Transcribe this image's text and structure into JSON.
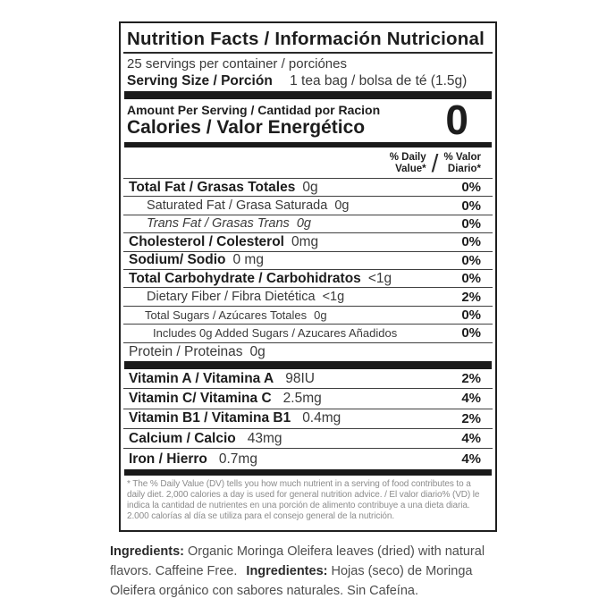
{
  "colors": {
    "ink_bold": "#1d1d1d",
    "ink_light": "#3a3a3a",
    "divider": "#1a1a1a",
    "footnote_gray": "#8c8c8c",
    "ingredients_gray": "#4e4e4e",
    "background": "#ffffff"
  },
  "label": {
    "title": "Nutrition Facts / Información Nutricional",
    "servings": "25 servings per container / porciónes",
    "serving_size_label": "Serving Size / Porción",
    "serving_size_value": "1 tea bag / bolsa de té (1.5g)",
    "amount_per_serving": "Amount Per Serving / Cantidad por Racion",
    "calories_label": "Calories / Valor Energético",
    "calories_value": "0",
    "dv_header": {
      "en_line1": "% Daily",
      "en_line2": "Value*",
      "slash": "/",
      "es_line1": "% Valor",
      "es_line2": "Diario*"
    },
    "rows": [
      {
        "name": "Total Fat / Grasas Totales",
        "amount": "0g",
        "dv": "0%"
      },
      {
        "name": "Saturated Fat / Grasa Saturada",
        "amount": "0g",
        "dv": "0%"
      },
      {
        "name": "Trans Fat / Grasas Trans",
        "amount": "0g",
        "dv": "0%"
      },
      {
        "name": "Cholesterol / Colesterol",
        "amount": "0mg",
        "dv": "0%"
      },
      {
        "name": "Sodium/ Sodio",
        "amount": "0 mg",
        "dv": "0%"
      },
      {
        "name": "Total Carbohydrate / Carbohidratos",
        "amount": "<1g",
        "dv": "0%"
      },
      {
        "name": "Dietary Fiber / Fibra Dietética",
        "amount": "<1g",
        "dv": "2%"
      },
      {
        "name": "Total Sugars / Azúcares Totales",
        "amount": "0g",
        "dv": "0%"
      },
      {
        "name": "Includes 0g Added Sugars / Azucares Añadidos",
        "amount": "",
        "dv": "0%"
      },
      {
        "name": "Protein / Proteinas",
        "amount": "0g",
        "dv": ""
      }
    ],
    "vitamins": [
      {
        "name": "Vitamin A / Vitamina A",
        "amount": "98IU",
        "dv": "2%"
      },
      {
        "name": "Vitamin C/ Vitamina C",
        "amount": "2.5mg",
        "dv": "4%"
      },
      {
        "name": "Vitamin B1 / Vitamina B1",
        "amount": "0.4mg",
        "dv": "2%"
      },
      {
        "name": "Calcium / Calcio",
        "amount": "43mg",
        "dv": "4%"
      },
      {
        "name": "Iron / Hierro",
        "amount": "0.7mg",
        "dv": "4%"
      }
    ],
    "footnote": "* The % Daily Value (DV) tells you how much nutrient in a serving of food contributes to a daily diet. 2,000 calories a day is used for general nutrition advice. / El valor diario% (VD) le indica la cantidad de nutrientes en una porción de alimento contribuye a una dieta diaria. 2.000 calorías al día se utiliza para el consejo general de la nutrición."
  },
  "ingredients": {
    "label_en": "Ingredients:",
    "text_en": "Organic Moringa Oleifera leaves (dried) with natural flavors. Caffeine Free.",
    "label_es": "Ingredientes:",
    "text_es": "Hojas (seco) de Moringa Oleifera orgánico con sabores naturales. Sin Cafeína."
  }
}
